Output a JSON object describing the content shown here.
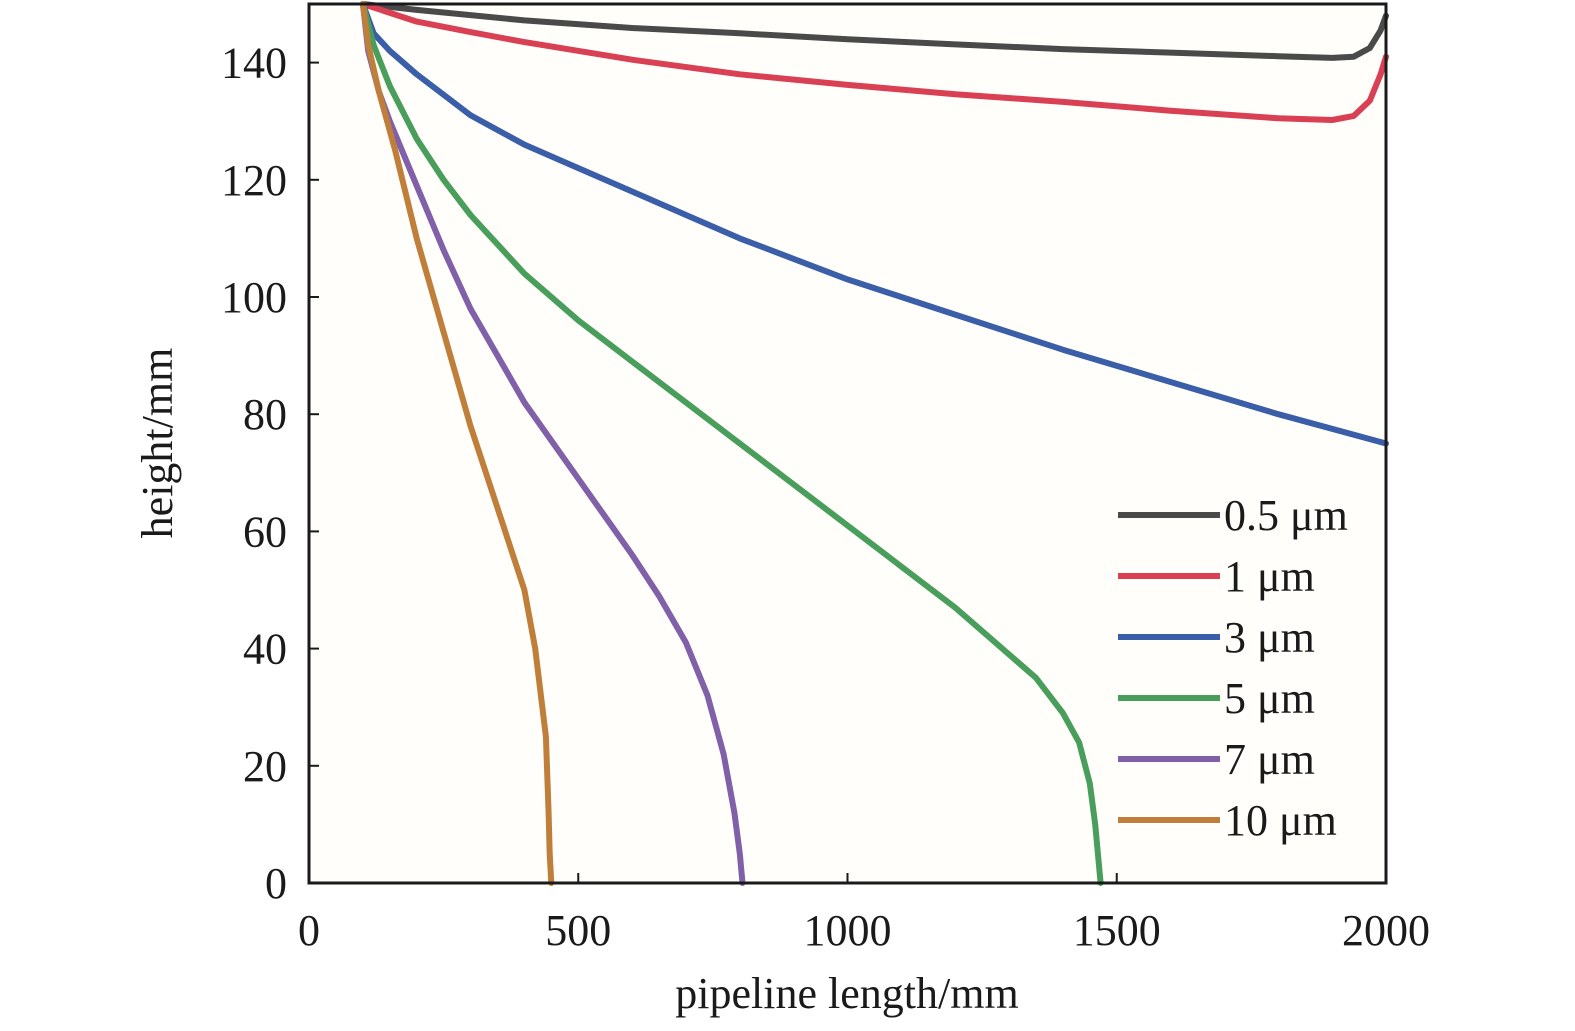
{
  "chart_data": {
    "type": "line",
    "title": "",
    "xlabel": "pipeline length/mm",
    "ylabel": "height/mm",
    "xlim": [
      0,
      2000
    ],
    "ylim": [
      0,
      150
    ],
    "x_ticks": [
      0,
      500,
      1000,
      1500,
      2000
    ],
    "y_ticks": [
      0,
      20,
      40,
      60,
      80,
      100,
      120,
      140
    ],
    "grid": false,
    "legend_position": "bottom-right",
    "series": [
      {
        "name": "0.5 μm",
        "color": "#4a4a4a",
        "points": [
          [
            100,
            150
          ],
          [
            200,
            149
          ],
          [
            400,
            147.2
          ],
          [
            600,
            145.9
          ],
          [
            800,
            145
          ],
          [
            1000,
            144
          ],
          [
            1200,
            143.1
          ],
          [
            1400,
            142.3
          ],
          [
            1600,
            141.7
          ],
          [
            1800,
            141.1
          ],
          [
            1900,
            140.8
          ],
          [
            1940,
            141
          ],
          [
            1970,
            142.5
          ],
          [
            1990,
            145.5
          ],
          [
            2000,
            148
          ]
        ]
      },
      {
        "name": "1 μm",
        "color": "#d94053",
        "points": [
          [
            100,
            150
          ],
          [
            200,
            147
          ],
          [
            300,
            145.2
          ],
          [
            400,
            143.5
          ],
          [
            600,
            140.5
          ],
          [
            800,
            138
          ],
          [
            1000,
            136.2
          ],
          [
            1200,
            134.6
          ],
          [
            1400,
            133.3
          ],
          [
            1600,
            131.8
          ],
          [
            1800,
            130.5
          ],
          [
            1900,
            130.2
          ],
          [
            1940,
            130.9
          ],
          [
            1970,
            133.5
          ],
          [
            1990,
            138
          ],
          [
            2000,
            141
          ]
        ]
      },
      {
        "name": "3 μm",
        "color": "#3a5fa8",
        "points": [
          [
            100,
            150
          ],
          [
            120,
            145
          ],
          [
            150,
            142
          ],
          [
            200,
            138
          ],
          [
            300,
            131
          ],
          [
            400,
            126
          ],
          [
            500,
            122
          ],
          [
            600,
            118
          ],
          [
            700,
            114
          ],
          [
            800,
            110
          ],
          [
            900,
            106.5
          ],
          [
            1000,
            103
          ],
          [
            1200,
            97
          ],
          [
            1400,
            91
          ],
          [
            1600,
            85.5
          ],
          [
            1800,
            80
          ],
          [
            2000,
            75
          ]
        ]
      },
      {
        "name": "5 μm",
        "color": "#4a9e5c",
        "points": [
          [
            100,
            150
          ],
          [
            120,
            143
          ],
          [
            150,
            136
          ],
          [
            200,
            127
          ],
          [
            250,
            120
          ],
          [
            300,
            114
          ],
          [
            400,
            104
          ],
          [
            500,
            96
          ],
          [
            600,
            89
          ],
          [
            700,
            82
          ],
          [
            800,
            75
          ],
          [
            900,
            68
          ],
          [
            1000,
            61
          ],
          [
            1100,
            54
          ],
          [
            1200,
            47
          ],
          [
            1300,
            39
          ],
          [
            1350,
            35
          ],
          [
            1400,
            29
          ],
          [
            1430,
            24
          ],
          [
            1450,
            17
          ],
          [
            1460,
            10
          ],
          [
            1470,
            0
          ]
        ]
      },
      {
        "name": "7 μm",
        "color": "#8060a8",
        "points": [
          [
            100,
            150
          ],
          [
            110,
            142
          ],
          [
            130,
            135
          ],
          [
            150,
            130
          ],
          [
            200,
            119
          ],
          [
            250,
            108
          ],
          [
            300,
            98
          ],
          [
            350,
            90
          ],
          [
            400,
            82
          ],
          [
            500,
            69
          ],
          [
            600,
            56
          ],
          [
            650,
            49
          ],
          [
            700,
            41
          ],
          [
            740,
            32
          ],
          [
            770,
            22
          ],
          [
            790,
            12
          ],
          [
            800,
            5
          ],
          [
            805,
            0
          ]
        ]
      },
      {
        "name": "10 μm",
        "color": "#bf7f3a",
        "points": [
          [
            100,
            150
          ],
          [
            110,
            143
          ],
          [
            130,
            135
          ],
          [
            160,
            125
          ],
          [
            200,
            110
          ],
          [
            250,
            94
          ],
          [
            300,
            78
          ],
          [
            350,
            64
          ],
          [
            400,
            50
          ],
          [
            420,
            40
          ],
          [
            440,
            25
          ],
          [
            445,
            12
          ],
          [
            447,
            5
          ],
          [
            450,
            0
          ]
        ]
      }
    ]
  }
}
